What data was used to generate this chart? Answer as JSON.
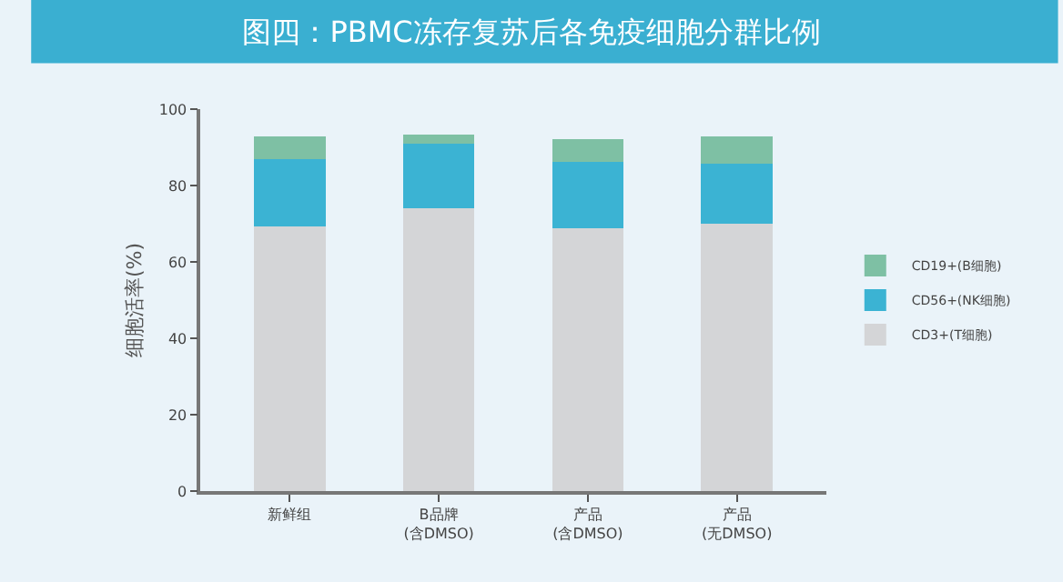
{
  "chart_data": {
    "type": "bar",
    "title": "图四：PBMC冻存复苏后各免疫细胞分群比例",
    "ylabel": "细胞活率(%)",
    "categories": [
      "新鲜组",
      "B品牌\n(含DMSO)",
      "产品\n(含DMSO)",
      "产品\n(无DMSO)"
    ],
    "stacked": true,
    "series": [
      {
        "name": "CD3+(T细胞)",
        "color": "#d4d5d7",
        "values": [
          69.3,
          74.0,
          68.7,
          70.0
        ]
      },
      {
        "name": "CD56+(NK细胞)",
        "color": "#3bb3d3",
        "values": [
          17.7,
          17.0,
          17.6,
          15.7
        ]
      },
      {
        "name": "CD19+(B细胞)",
        "color": "#7ec0a4",
        "values": [
          5.8,
          2.3,
          5.9,
          7.1
        ]
      }
    ],
    "ylim": [
      0,
      100
    ],
    "yticks": [
      0,
      20,
      40,
      60,
      80,
      100
    ],
    "grid": false,
    "legend": "right"
  }
}
